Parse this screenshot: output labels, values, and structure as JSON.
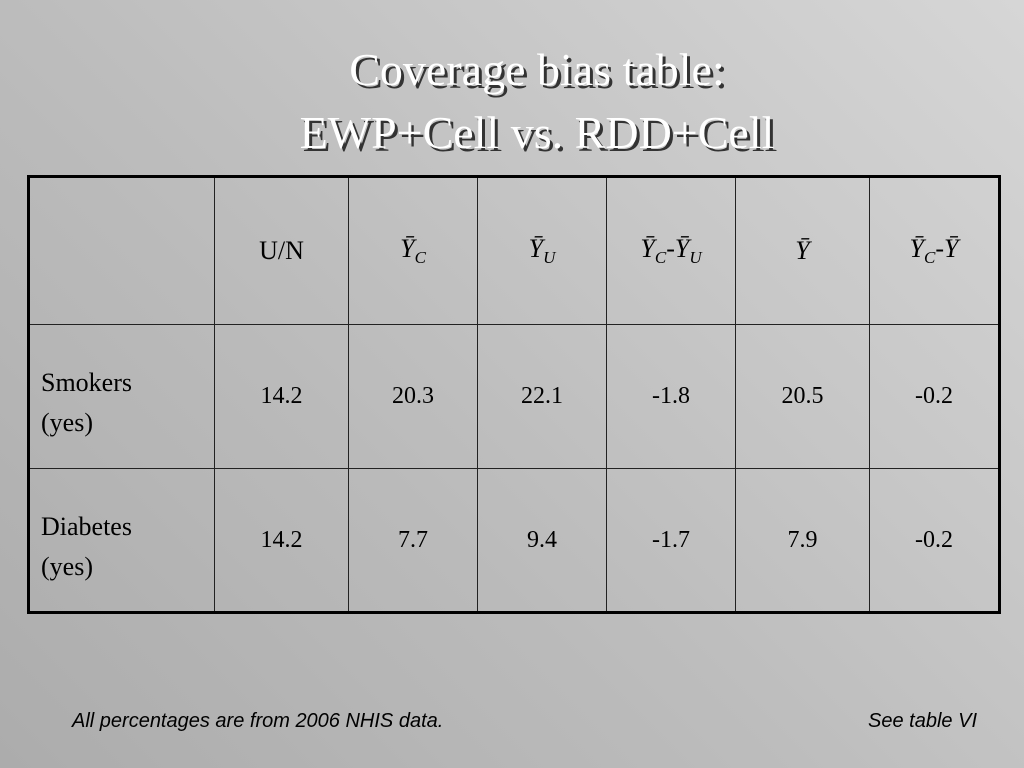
{
  "title": {
    "lines": [
      "Coverage bias table:",
      "EWP+Cell vs. RDD+Cell"
    ]
  },
  "table": {
    "header": [
      [
        {
          "t": "U/N"
        }
      ],
      [
        {
          "t": "Ȳ",
          "sub": "C"
        }
      ],
      [
        {
          "t": "Ȳ",
          "sub": "U"
        }
      ],
      [
        {
          "t": "Ȳ",
          "sub": "C"
        },
        {
          "t": "-"
        },
        {
          "t": "Ȳ",
          "sub": "U"
        }
      ],
      [
        {
          "t": "Ȳ"
        }
      ],
      [
        {
          "t": "Ȳ",
          "sub": "C"
        },
        {
          "t": "-"
        },
        {
          "t": "Ȳ"
        }
      ]
    ],
    "rows": [
      {
        "label": [
          "Smokers",
          "(yes)"
        ],
        "values": [
          14.2,
          20.3,
          22.1,
          -1.8,
          20.5,
          -0.2
        ]
      },
      {
        "label": [
          "Diabetes",
          "(yes)"
        ],
        "values": [
          14.2,
          7.7,
          9.4,
          -1.7,
          7.9,
          -0.2
        ]
      }
    ]
  },
  "footer": {
    "note": "All percentages are from 2006 NHIS data.",
    "reference": "See table VI"
  }
}
